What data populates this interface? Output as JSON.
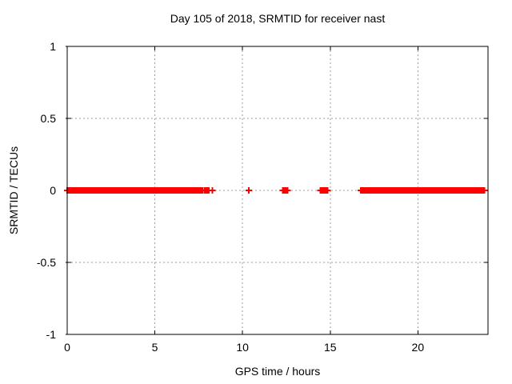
{
  "chart_data": {
    "type": "scatter",
    "title": "Day 105 of 2018, SRMTID for receiver nast",
    "xlabel": "GPS time / hours",
    "ylabel": "SRMTID / TECUs",
    "xlim": [
      0,
      24
    ],
    "ylim": [
      -1,
      1
    ],
    "xticks": [
      0,
      5,
      10,
      15,
      20
    ],
    "yticks": [
      1,
      0.5,
      0,
      -0.5,
      -1
    ],
    "grid": true,
    "legend": "none",
    "colors": {
      "series": "#ff0000",
      "grid": "#9c9c9c",
      "border": "#000000",
      "background": "#ffffff"
    },
    "series": [
      {
        "name": "SRMTID",
        "color": "#ff0000",
        "marker": "plus",
        "y_value": 0,
        "dense_segments_hours": [
          [
            0,
            7.71
          ],
          [
            7.83,
            8.08
          ],
          [
            12.3,
            12.58
          ],
          [
            14.45,
            14.85
          ],
          [
            16.74,
            23.7
          ]
        ],
        "point_hours": [
          8.28,
          10.36,
          23.8
        ]
      }
    ]
  }
}
